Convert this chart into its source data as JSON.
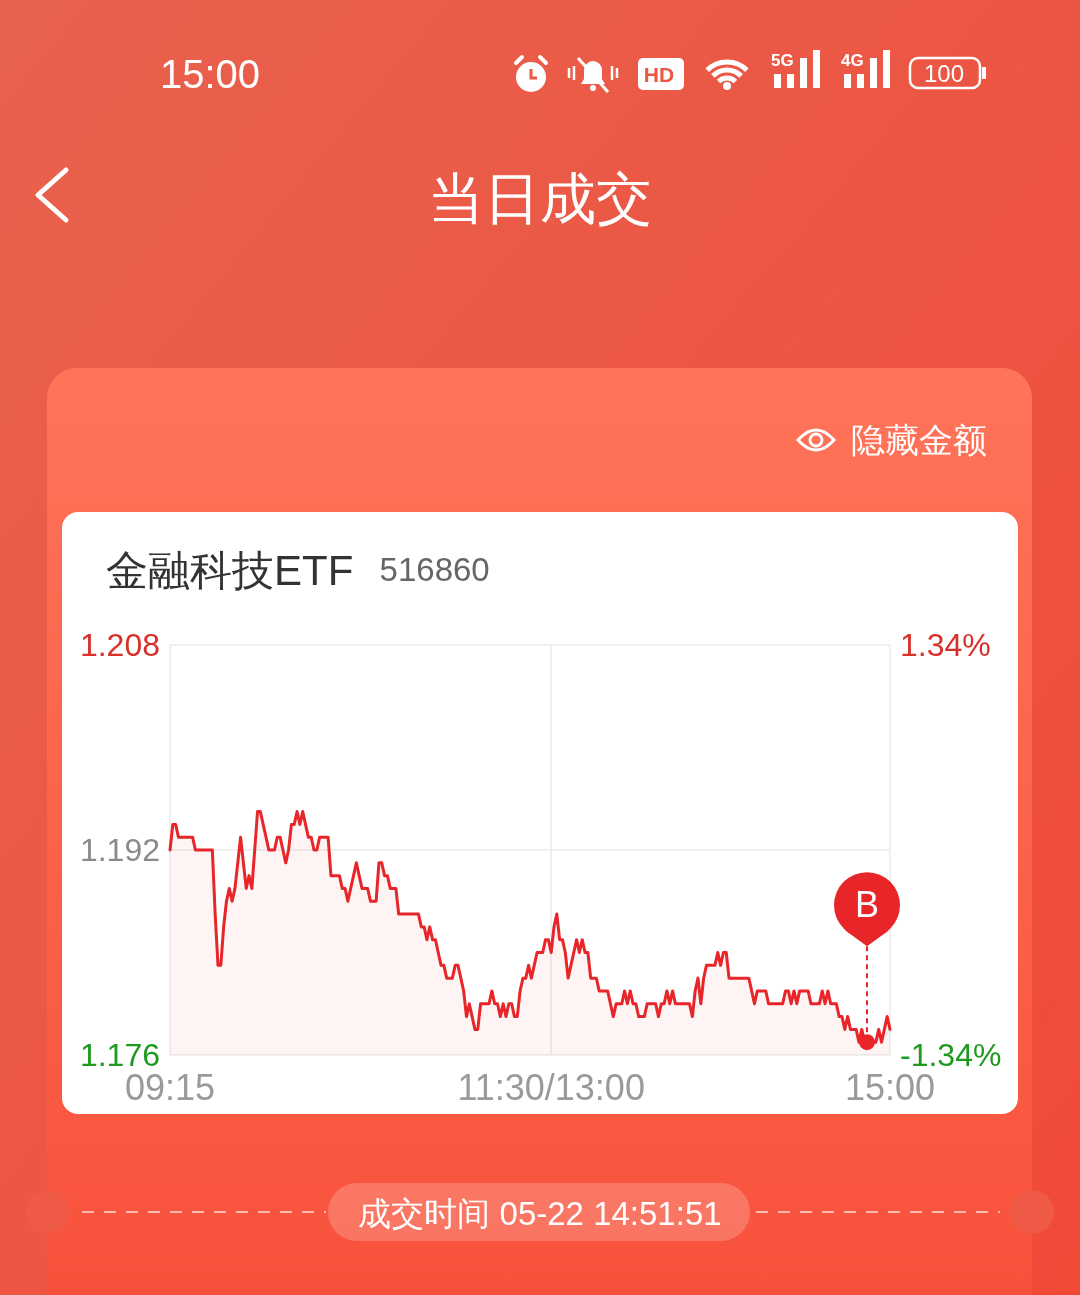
{
  "chart_data": {
    "type": "area",
    "title": "金融科技ETF",
    "subtitle": "516860",
    "categories": [
      "09:15",
      null,
      null,
      null,
      null,
      null,
      null,
      null,
      null,
      null,
      null,
      null,
      null,
      null,
      null,
      null,
      null,
      null,
      null,
      null,
      null,
      null,
      null,
      null,
      null,
      null,
      null,
      null,
      null,
      null,
      null,
      null,
      null,
      null,
      null,
      null,
      null,
      null,
      null,
      null,
      null,
      null,
      null,
      null,
      null,
      null,
      null,
      null,
      null,
      null,
      null,
      null,
      null,
      null,
      null,
      null,
      null,
      null,
      null,
      null,
      null,
      null,
      null,
      null,
      null,
      null,
      null,
      null,
      null,
      null,
      null,
      null,
      null,
      null,
      null,
      null,
      null,
      null,
      null,
      null,
      null,
      null,
      null,
      null,
      null,
      null,
      null,
      null,
      null,
      null,
      null,
      null,
      null,
      null,
      null,
      null,
      null,
      null,
      null,
      null,
      null,
      null,
      null,
      null,
      null,
      null,
      null,
      null,
      null,
      null,
      null,
      null,
      null,
      null,
      null,
      null,
      null,
      null,
      null,
      null,
      null,
      null,
      null,
      null,
      null,
      null,
      null,
      null,
      null,
      null,
      null,
      null,
      null,
      null,
      null,
      "11:30/13:00",
      null,
      null,
      null,
      null,
      null,
      null,
      null,
      null,
      null,
      null,
      null,
      null,
      null,
      null,
      null,
      null,
      null,
      null,
      null,
      null,
      null,
      null,
      null,
      null,
      null,
      null,
      null,
      null,
      null,
      null,
      null,
      null,
      null,
      null,
      null,
      null,
      null,
      null,
      null,
      null,
      null,
      null,
      null,
      null,
      null,
      null,
      null,
      null,
      null,
      null,
      null,
      null,
      null,
      null,
      null,
      null,
      null,
      null,
      null,
      null,
      null,
      null,
      null,
      null,
      null,
      null,
      null,
      null,
      null,
      null,
      null,
      null,
      null,
      null,
      null,
      null,
      null,
      null,
      null,
      null,
      null,
      null,
      null,
      null,
      null,
      null,
      null,
      null,
      null,
      null,
      null,
      null,
      null,
      null,
      null,
      null,
      null,
      null,
      null,
      null,
      null,
      null,
      null,
      null,
      null,
      null,
      null,
      null,
      null,
      null,
      null,
      null,
      null,
      null,
      null,
      null,
      null,
      null,
      null,
      "15:00"
    ],
    "series": [
      {
        "color": "#e8262a",
        "values": [
          1.192,
          1.194,
          1.194,
          1.193,
          1.193,
          1.193,
          1.193,
          1.193,
          1.193,
          1.192,
          1.192,
          1.192,
          1.192,
          1.192,
          1.192,
          1.192,
          1.187,
          1.183,
          1.183,
          1.186,
          1.188,
          1.189,
          1.188,
          1.189,
          1.191,
          1.193,
          1.191,
          1.189,
          1.19,
          1.189,
          1.192,
          1.195,
          1.195,
          1.194,
          1.193,
          1.192,
          1.192,
          1.192,
          1.193,
          1.193,
          1.192,
          1.191,
          1.192,
          1.194,
          1.194,
          1.195,
          1.194,
          1.195,
          1.194,
          1.193,
          1.193,
          1.192,
          1.192,
          1.193,
          1.193,
          1.193,
          1.193,
          1.19,
          1.19,
          1.19,
          1.19,
          1.189,
          1.189,
          1.188,
          1.189,
          1.19,
          1.191,
          1.19,
          1.189,
          1.189,
          1.189,
          1.188,
          1.188,
          1.188,
          1.191,
          1.191,
          1.19,
          1.19,
          1.189,
          1.189,
          1.189,
          1.187,
          1.187,
          1.187,
          1.187,
          1.187,
          1.187,
          1.187,
          1.187,
          1.186,
          1.186,
          1.185,
          1.186,
          1.185,
          1.185,
          1.184,
          1.183,
          1.183,
          1.182,
          1.182,
          1.182,
          1.183,
          1.183,
          1.182,
          1.181,
          1.179,
          1.18,
          1.179,
          1.178,
          1.178,
          1.18,
          1.18,
          1.18,
          1.18,
          1.181,
          1.18,
          1.18,
          1.179,
          1.18,
          1.179,
          1.18,
          1.18,
          1.179,
          1.179,
          1.181,
          1.182,
          1.182,
          1.183,
          1.182,
          1.183,
          1.184,
          1.184,
          1.184,
          1.185,
          1.185,
          1.184,
          1.186,
          1.187,
          1.185,
          1.185,
          1.184,
          1.182,
          1.183,
          1.184,
          1.185,
          1.184,
          1.185,
          1.184,
          1.184,
          1.182,
          1.182,
          1.182,
          1.181,
          1.181,
          1.181,
          1.181,
          1.18,
          1.179,
          1.18,
          1.18,
          1.18,
          1.181,
          1.18,
          1.181,
          1.18,
          1.18,
          1.179,
          1.179,
          1.179,
          1.18,
          1.18,
          1.18,
          1.18,
          1.179,
          1.18,
          1.18,
          1.181,
          1.18,
          1.181,
          1.18,
          1.18,
          1.18,
          1.18,
          1.18,
          1.18,
          1.179,
          1.181,
          1.182,
          1.18,
          1.182,
          1.183,
          1.183,
          1.183,
          1.183,
          1.184,
          1.183,
          1.184,
          1.184,
          1.182,
          1.182,
          1.182,
          1.182,
          1.182,
          1.182,
          1.182,
          1.182,
          1.181,
          1.18,
          1.181,
          1.181,
          1.181,
          1.181,
          1.18,
          1.18,
          1.18,
          1.18,
          1.18,
          1.18,
          1.181,
          1.181,
          1.18,
          1.181,
          1.18,
          1.181,
          1.181,
          1.181,
          1.181,
          1.18,
          1.18,
          1.18,
          1.18,
          1.181,
          1.18,
          1.181,
          1.18,
          1.18,
          1.18,
          1.179,
          1.179,
          1.178,
          1.179,
          1.178,
          1.178,
          1.178,
          1.177,
          1.178,
          1.177,
          1.177,
          1.177,
          1.177,
          1.177,
          1.178,
          1.177,
          1.178,
          1.179,
          1.178
        ]
      }
    ],
    "ylim": [
      1.176,
      1.208
    ],
    "yticks": [
      1.176,
      1.192,
      1.208
    ],
    "y2lim": [
      -1.34,
      1.34
    ],
    "y2ticks": [
      {
        "value": -1.34,
        "label": "-1.34%"
      },
      {
        "value": 1.34,
        "label": "1.34%"
      }
    ],
    "grid": true,
    "annotations": [
      "15:00",
      "HD",
      "5G",
      "4G",
      "100",
      "当日成交",
      "隐藏金额",
      {
        "text": "B",
        "y": 1.177
      },
      "成交时间 05-22 14:51:51"
    ]
  }
}
